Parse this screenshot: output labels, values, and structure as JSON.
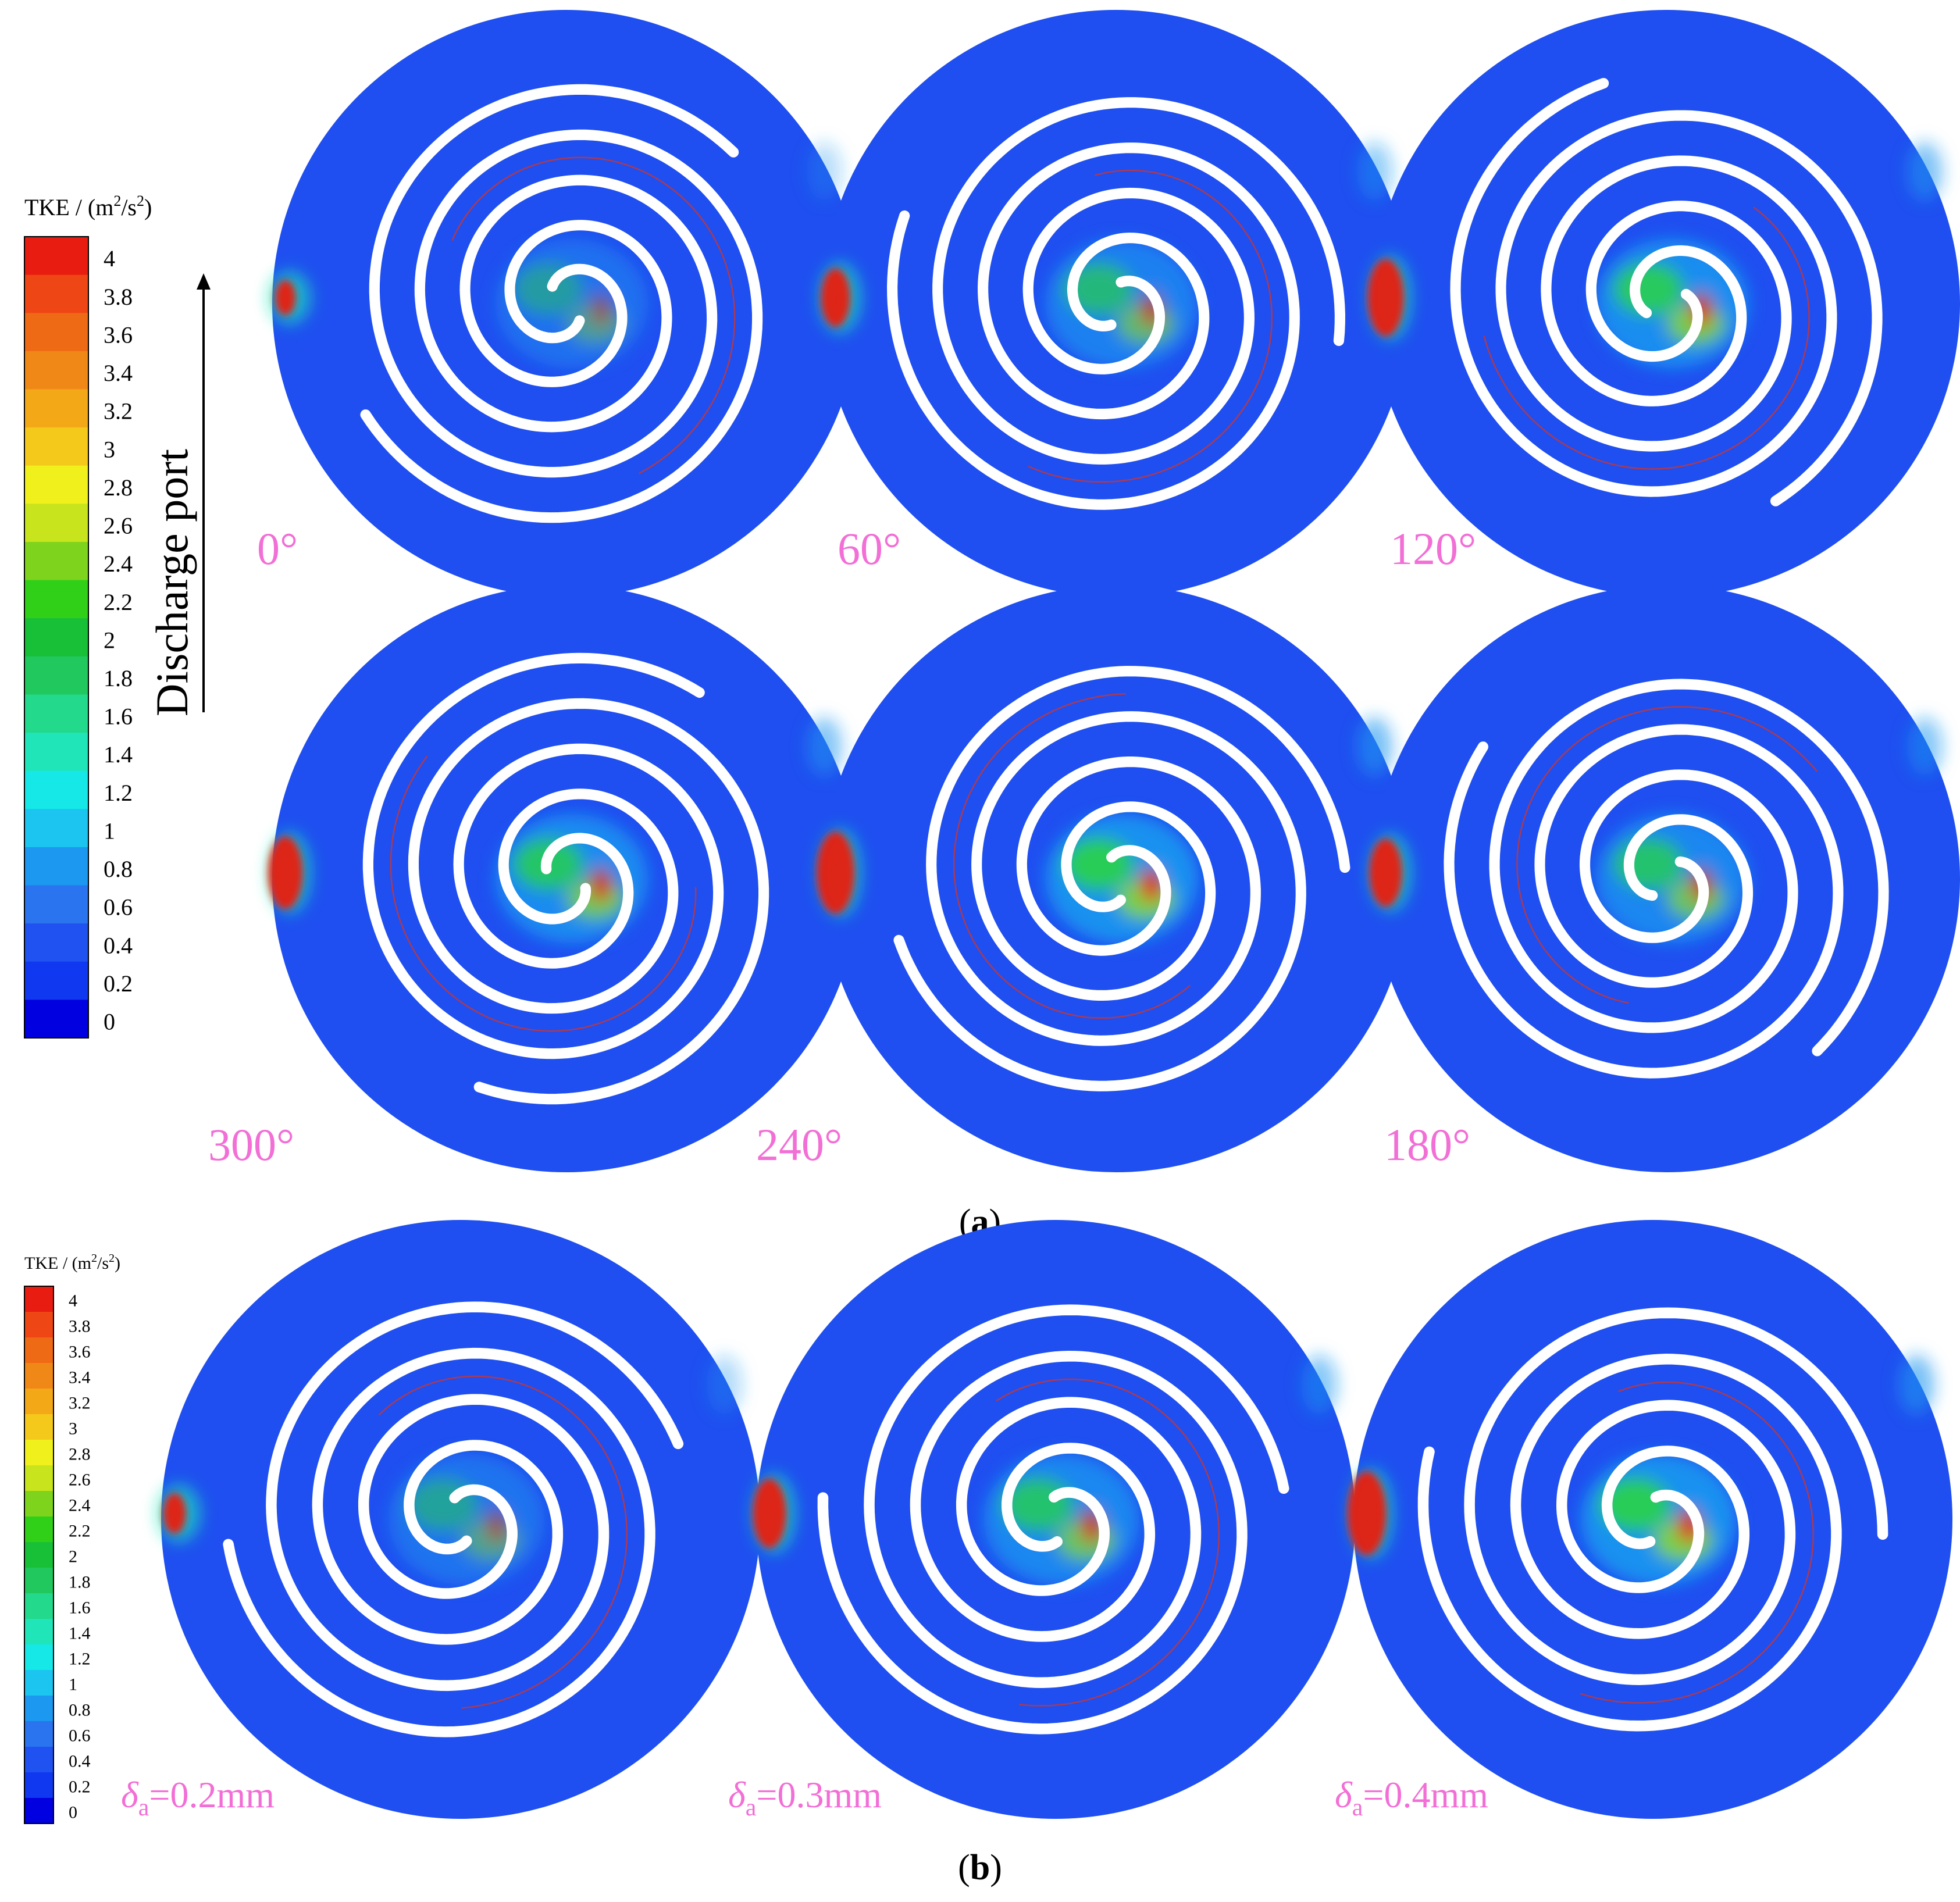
{
  "colors": {
    "fluid": "#1f4ff0",
    "wrap": "#ffffff",
    "label_pink": "#f26fd6",
    "scale": [
      "#0000e0",
      "#1038f0",
      "#1f52f0",
      "#2a74f0",
      "#1c98f0",
      "#1cc4f0",
      "#15e8e6",
      "#1fe5b8",
      "#23d98c",
      "#20c85e",
      "#18c038",
      "#30d018",
      "#7ed41c",
      "#c8e41c",
      "#f0f01c",
      "#f5c81c",
      "#f3a818",
      "#f08818",
      "#ef6a14",
      "#ee4614",
      "#e81c10"
    ]
  },
  "legend_top": {
    "title_prefix": "TKE / (m",
    "title_sup1": "2",
    "title_mid": "/s",
    "title_sup2": "2",
    "title_suffix": ")",
    "ticks": [
      "4",
      "3.8",
      "3.6",
      "3.4",
      "3.2",
      "3",
      "2.8",
      "2.6",
      "2.4",
      "2.2",
      "2",
      "1.8",
      "1.6",
      "1.4",
      "1.2",
      "1",
      "0.8",
      "0.6",
      "0.4",
      "0.2",
      "0"
    ]
  },
  "legend_bottom": {
    "title_prefix": "TKE / (m",
    "title_sup1": "2",
    "title_mid": "/s",
    "title_sup2": "2",
    "title_suffix": ")",
    "ticks": [
      "4",
      "3.8",
      "3.6",
      "3.4",
      "3.2",
      "3",
      "2.8",
      "2.6",
      "2.4",
      "2.2",
      "2",
      "1.8",
      "1.6",
      "1.4",
      "1.2",
      "1",
      "0.8",
      "0.6",
      "0.4",
      "0.2",
      "0"
    ]
  },
  "discharge_label": "Discharge port",
  "panel_a": {
    "caption_open": "(",
    "caption_letter": "a",
    "caption_close": ")",
    "plots": [
      {
        "label": "0°",
        "intensity": 0.5
      },
      {
        "label": "60°",
        "intensity": 0.75
      },
      {
        "label": "120°",
        "intensity": 0.95
      },
      {
        "label": "300°",
        "intensity": 0.9
      },
      {
        "label": "240°",
        "intensity": 1.0
      },
      {
        "label": "180°",
        "intensity": 0.85
      }
    ]
  },
  "panel_b": {
    "caption_open": "(",
    "caption_letter": "b",
    "caption_close": ")",
    "plots": [
      {
        "symbol": "δ",
        "subscript": "a",
        "value": "=0.2mm",
        "intensity": 0.55
      },
      {
        "symbol": "δ",
        "subscript": "a",
        "value": "=0.3mm",
        "intensity": 0.85
      },
      {
        "symbol": "δ",
        "subscript": "a",
        "value": "=0.4mm",
        "intensity": 1.0
      }
    ]
  }
}
